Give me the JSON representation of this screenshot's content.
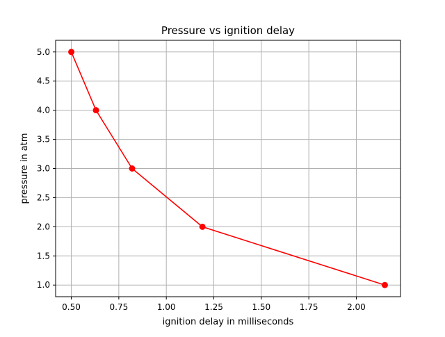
{
  "chart_data": {
    "type": "line",
    "title": "Pressure vs ignition delay",
    "xlabel": "ignition delay in milliseconds",
    "ylabel": "pressure in atm",
    "xlim": [
      0.4175,
      2.2325
    ],
    "ylim": [
      0.8,
      5.2
    ],
    "grid": true,
    "x_ticks": [
      0.5,
      0.75,
      1.0,
      1.25,
      1.5,
      1.75,
      2.0
    ],
    "x_tick_labels": [
      "0.50",
      "0.75",
      "1.00",
      "1.25",
      "1.50",
      "1.75",
      "2.00"
    ],
    "y_ticks": [
      1.0,
      1.5,
      2.0,
      2.5,
      3.0,
      3.5,
      4.0,
      4.5,
      5.0
    ],
    "y_tick_labels": [
      "1.0",
      "1.5",
      "2.0",
      "2.5",
      "3.0",
      "3.5",
      "4.0",
      "4.5",
      "5.0"
    ],
    "series": [
      {
        "name": "pressure",
        "color": "#ff0000",
        "marker": "circle",
        "x": [
          0.5,
          0.63,
          0.82,
          1.19,
          2.15
        ],
        "y": [
          5.0,
          4.0,
          3.0,
          2.0,
          1.0
        ]
      }
    ]
  }
}
